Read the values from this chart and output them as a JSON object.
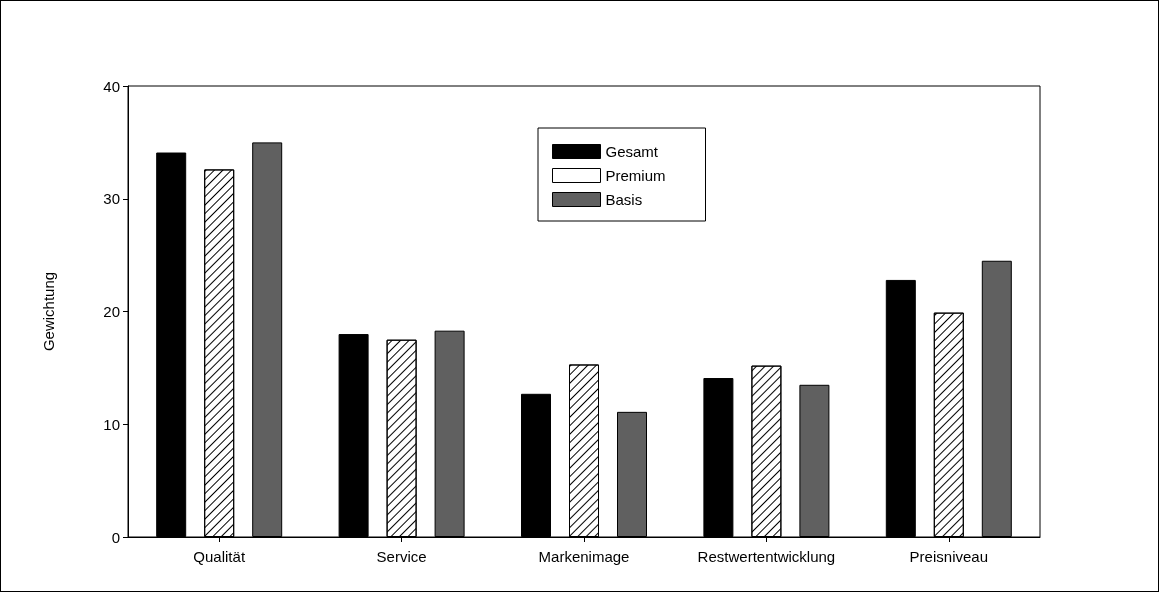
{
  "chart_data": {
    "type": "bar",
    "ylabel": "Gewichtung",
    "categories": [
      "Qualität",
      "Service",
      "Markenimage",
      "Restwertentwicklung",
      "Preisniveau"
    ],
    "series": [
      {
        "name": "Gesamt",
        "color": "#000000",
        "values": [
          34.1,
          18.0,
          12.7,
          14.1,
          22.8
        ]
      },
      {
        "name": "Premium",
        "color": "#ffffff",
        "values": [
          32.6,
          17.5,
          15.3,
          15.2,
          19.9
        ]
      },
      {
        "name": "Basis",
        "color": "#606060",
        "values": [
          35.0,
          18.3,
          11.1,
          13.5,
          24.5
        ]
      }
    ],
    "ylim": [
      0,
      40
    ],
    "yticks": [
      0,
      10,
      20,
      30,
      40
    ],
    "grid": false,
    "legend": "top"
  }
}
